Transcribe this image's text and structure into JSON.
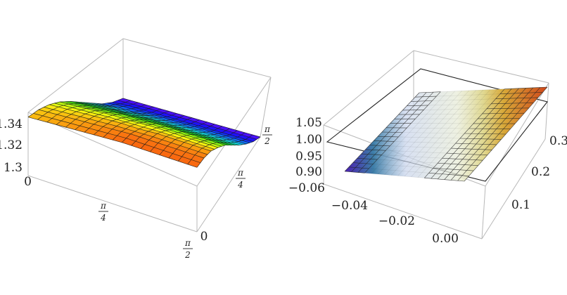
{
  "chart_data": [
    {
      "type": "surface3d",
      "title": "",
      "x_ticks": [
        {
          "value": 0,
          "label": "0"
        },
        {
          "value": 0.785398,
          "num": "π",
          "den": "4"
        },
        {
          "value": 1.570796,
          "num": "π",
          "den": "2"
        }
      ],
      "y_ticks": [
        {
          "value": 0,
          "label": "0"
        },
        {
          "value": 0.785398,
          "num": "π",
          "den": "4"
        },
        {
          "value": 1.570796,
          "num": "π",
          "den": "2"
        }
      ],
      "z_ticks": [
        {
          "value": 1.3,
          "label": "1.3"
        },
        {
          "value": 1.32,
          "label": "1.32"
        },
        {
          "value": 1.34,
          "label": "1.34"
        }
      ],
      "xlim": [
        0,
        1.570796
      ],
      "ylim": [
        0,
        1.570796
      ],
      "zlim": [
        1.29,
        1.35
      ],
      "surface": {
        "corners": {
          "x0_y0": 1.34,
          "x0_y1": 1.29,
          "x1_y0": 1.345,
          "x1_y1": 1.29
        },
        "z_grid": [
          [
            1.34,
            1.339,
            1.336,
            1.331,
            1.324,
            1.316,
            1.308,
            1.3,
            1.294,
            1.29
          ],
          [
            1.341,
            1.34,
            1.337,
            1.332,
            1.325,
            1.317,
            1.309,
            1.301,
            1.295,
            1.29
          ],
          [
            1.342,
            1.341,
            1.338,
            1.333,
            1.326,
            1.318,
            1.309,
            1.301,
            1.295,
            1.29
          ],
          [
            1.343,
            1.342,
            1.339,
            1.334,
            1.327,
            1.318,
            1.31,
            1.302,
            1.295,
            1.29
          ],
          [
            1.344,
            1.343,
            1.34,
            1.334,
            1.327,
            1.319,
            1.31,
            1.302,
            1.295,
            1.29
          ],
          [
            1.345,
            1.344,
            1.34,
            1.335,
            1.328,
            1.319,
            1.31,
            1.302,
            1.295,
            1.29
          ],
          [
            1.345,
            1.344,
            1.341,
            1.335,
            1.328,
            1.319,
            1.31,
            1.302,
            1.295,
            1.29
          ],
          [
            1.345,
            1.344,
            1.341,
            1.335,
            1.328,
            1.319,
            1.31,
            1.302,
            1.295,
            1.29
          ],
          [
            1.345,
            1.344,
            1.341,
            1.335,
            1.328,
            1.319,
            1.31,
            1.302,
            1.295,
            1.29
          ],
          [
            1.345,
            1.344,
            1.341,
            1.335,
            1.328,
            1.319,
            1.31,
            1.302,
            1.295,
            1.29
          ]
        ],
        "colormap": "rainbow"
      }
    },
    {
      "type": "surface3d",
      "title": "",
      "x_ticks": [
        {
          "value": -0.06,
          "label": "−0.06"
        },
        {
          "value": -0.04,
          "label": "−0.04"
        },
        {
          "value": -0.02,
          "label": "−0.02"
        },
        {
          "value": 0.0,
          "label": "0.00"
        }
      ],
      "y_ticks": [
        {
          "value": 0.1,
          "label": "0.1"
        },
        {
          "value": 0.2,
          "label": "0.2"
        },
        {
          "value": 0.3,
          "label": "0.3"
        }
      ],
      "z_ticks": [
        {
          "value": 0.9,
          "label": "0.90"
        },
        {
          "value": 0.95,
          "label": "0.95"
        },
        {
          "value": 1.0,
          "label": "1.00"
        },
        {
          "value": 1.05,
          "label": "1.05"
        }
      ],
      "xlim": [
        -0.065,
        0.005
      ],
      "ylim": [
        0.03,
        0.33
      ],
      "zlim": [
        0.87,
        1.07
      ],
      "reference_plane_z": 1.0,
      "surface": {
        "corners": {
          "x0_y0": 0.885,
          "x0_y1": 1.02,
          "x1_y0": 0.995,
          "x1_y1": 1.035
        },
        "colormap": "translucent-blue-to-orange"
      }
    }
  ]
}
